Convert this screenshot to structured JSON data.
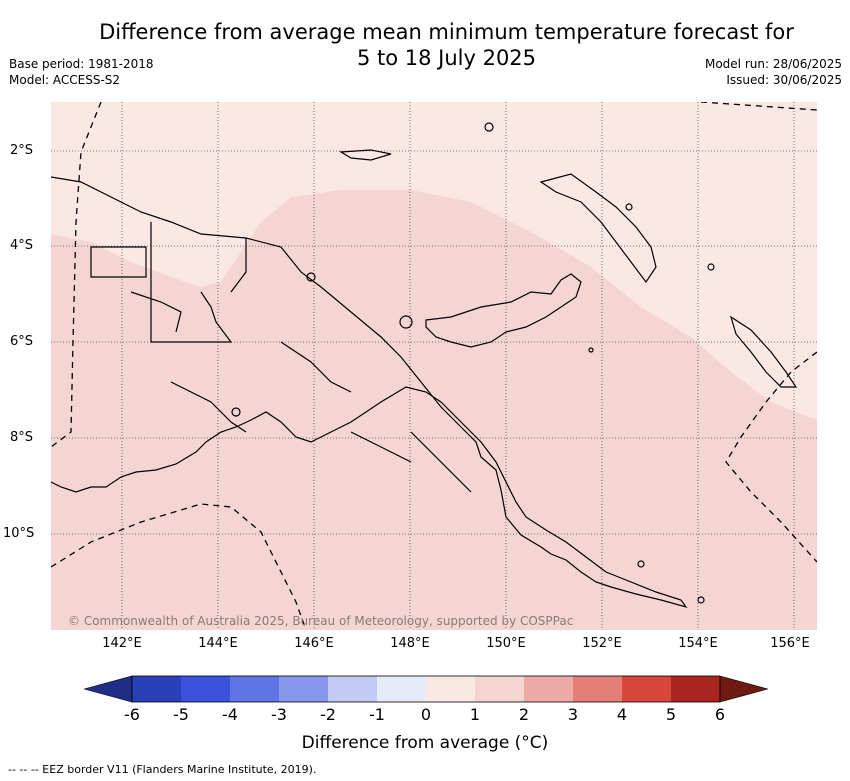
{
  "title": {
    "line1": "Difference from average mean minimum temperature forecast for",
    "line2": "5 to 18 July 2025"
  },
  "meta_left": {
    "base_period": "Base period: 1981-2018",
    "model": "Model: ACCESS-S2"
  },
  "meta_right": {
    "model_run": "Model run: 28/06/2025",
    "issued": "Issued: 30/06/2025"
  },
  "map": {
    "latitude_labels": [
      "2°S",
      "4°S",
      "6°S",
      "8°S",
      "10°S"
    ],
    "longitude_labels": [
      "142°E",
      "144°E",
      "146°E",
      "148°E",
      "150°E",
      "152°E",
      "154°E",
      "156°E"
    ],
    "credit": "© Commonwealth of Australia 2025, Bureau of Meteorology, supported by COSPPac",
    "colors": {
      "band_0_to_1": "#fbe8e5",
      "band_1_to_2": "#f5d5d1",
      "land_outline": "#000000"
    }
  },
  "colorbar": {
    "ticks": [
      "-6",
      "-5",
      "-4",
      "-3",
      "-2",
      "-1",
      "0",
      "1",
      "2",
      "3",
      "4",
      "5",
      "6"
    ],
    "colors": [
      "#1e2e86",
      "#2a40b6",
      "#3a52dc",
      "#5f75e6",
      "#8798ec",
      "#c3cbf4",
      "#e6ebfa",
      "#fbe8e5",
      "#f5d5d1",
      "#eeaaa5",
      "#e47f77",
      "#d9473c",
      "#a8261f",
      "#6e1a13"
    ],
    "label": "Difference from average (°C)"
  },
  "footer": {
    "eez_note": "--  --  -- EEZ border V11 (Flanders Marine Institute, 2019)."
  }
}
